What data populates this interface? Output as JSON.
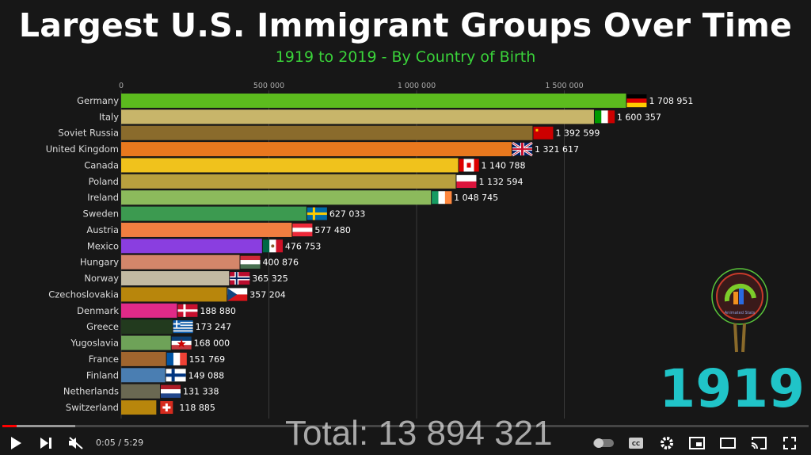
{
  "chart_data": {
    "type": "bar",
    "orientation": "horizontal",
    "title": "Largest U.S. Immigrant Groups Over Time",
    "subtitle": "1919 to 2019 - By Country of Birth",
    "year": "1919",
    "total_label": "Total: 13 894 321",
    "xlim": [
      0,
      1708951
    ],
    "xticks": [
      0,
      500000,
      1000000,
      1500000
    ],
    "xtick_labels": [
      "0",
      "500 000",
      "1 000 000",
      "1 500 000"
    ],
    "grid": true,
    "categories": [
      "Germany",
      "Italy",
      "Soviet Russia",
      "United Kingdom",
      "Canada",
      "Poland",
      "Ireland",
      "Sweden",
      "Austria",
      "Mexico",
      "Hungary",
      "Norway",
      "Czechoslovakia",
      "Denmark",
      "Greece",
      "Yugoslavia",
      "France",
      "Finland",
      "Netherlands",
      "Switzerland"
    ],
    "values": [
      1708951,
      1600357,
      1392599,
      1321617,
      1140788,
      1132594,
      1048745,
      627033,
      577480,
      476753,
      400876,
      365325,
      357204,
      188880,
      173247,
      168000,
      151769,
      149088,
      131338,
      118885
    ],
    "value_labels": [
      "1 708 951",
      "1 600 357",
      "1 392 599",
      "1 321 617",
      "1 140 788",
      "1 132 594",
      "1 048 745",
      "627 033",
      "577 480",
      "476 753",
      "400 876",
      "365 325",
      "357 204",
      "188 880",
      "173 247",
      "168 000",
      "151 769",
      "149 088",
      "131 338",
      "118 885"
    ],
    "colors": [
      "#5cbb1e",
      "#c8b56a",
      "#8a6b2c",
      "#e8781e",
      "#f0c21c",
      "#b8a03e",
      "#8cba5c",
      "#3c9a50",
      "#f07e40",
      "#8a3ee0",
      "#d4866a",
      "#c2b9a2",
      "#b8860c",
      "#e02a88",
      "#223a1e",
      "#6ea258",
      "#a0652e",
      "#4a7eb2",
      "#6a6852",
      "#b8860c"
    ],
    "flags": [
      "germany-flag-icon",
      "italy-flag-icon",
      "soviet-flag-icon",
      "uk-flag-icon",
      "canada-flag-icon",
      "poland-flag-icon",
      "ireland-flag-icon",
      "sweden-flag-icon",
      "austria-flag-icon",
      "mexico-flag-icon",
      "hungary-flag-icon",
      "norway-flag-icon",
      "czechoslovakia-flag-icon",
      "denmark-flag-icon",
      "greece-flag-icon",
      "yugoslavia-flag-icon",
      "france-flag-icon",
      "finland-flag-icon",
      "netherlands-flag-icon",
      "switzerland-flag-icon"
    ]
  },
  "logo_text": "Animated Stats",
  "player": {
    "time": "0:05 / 5:29",
    "progress_fraction": 0.016,
    "buffered_fraction": 0.09,
    "icons": [
      "play-icon",
      "next-icon",
      "mute-icon",
      "autoplay-toggle-icon",
      "captions-icon",
      "settings-icon",
      "miniplayer-icon",
      "theater-icon",
      "cast-icon",
      "fullscreen-icon"
    ]
  }
}
